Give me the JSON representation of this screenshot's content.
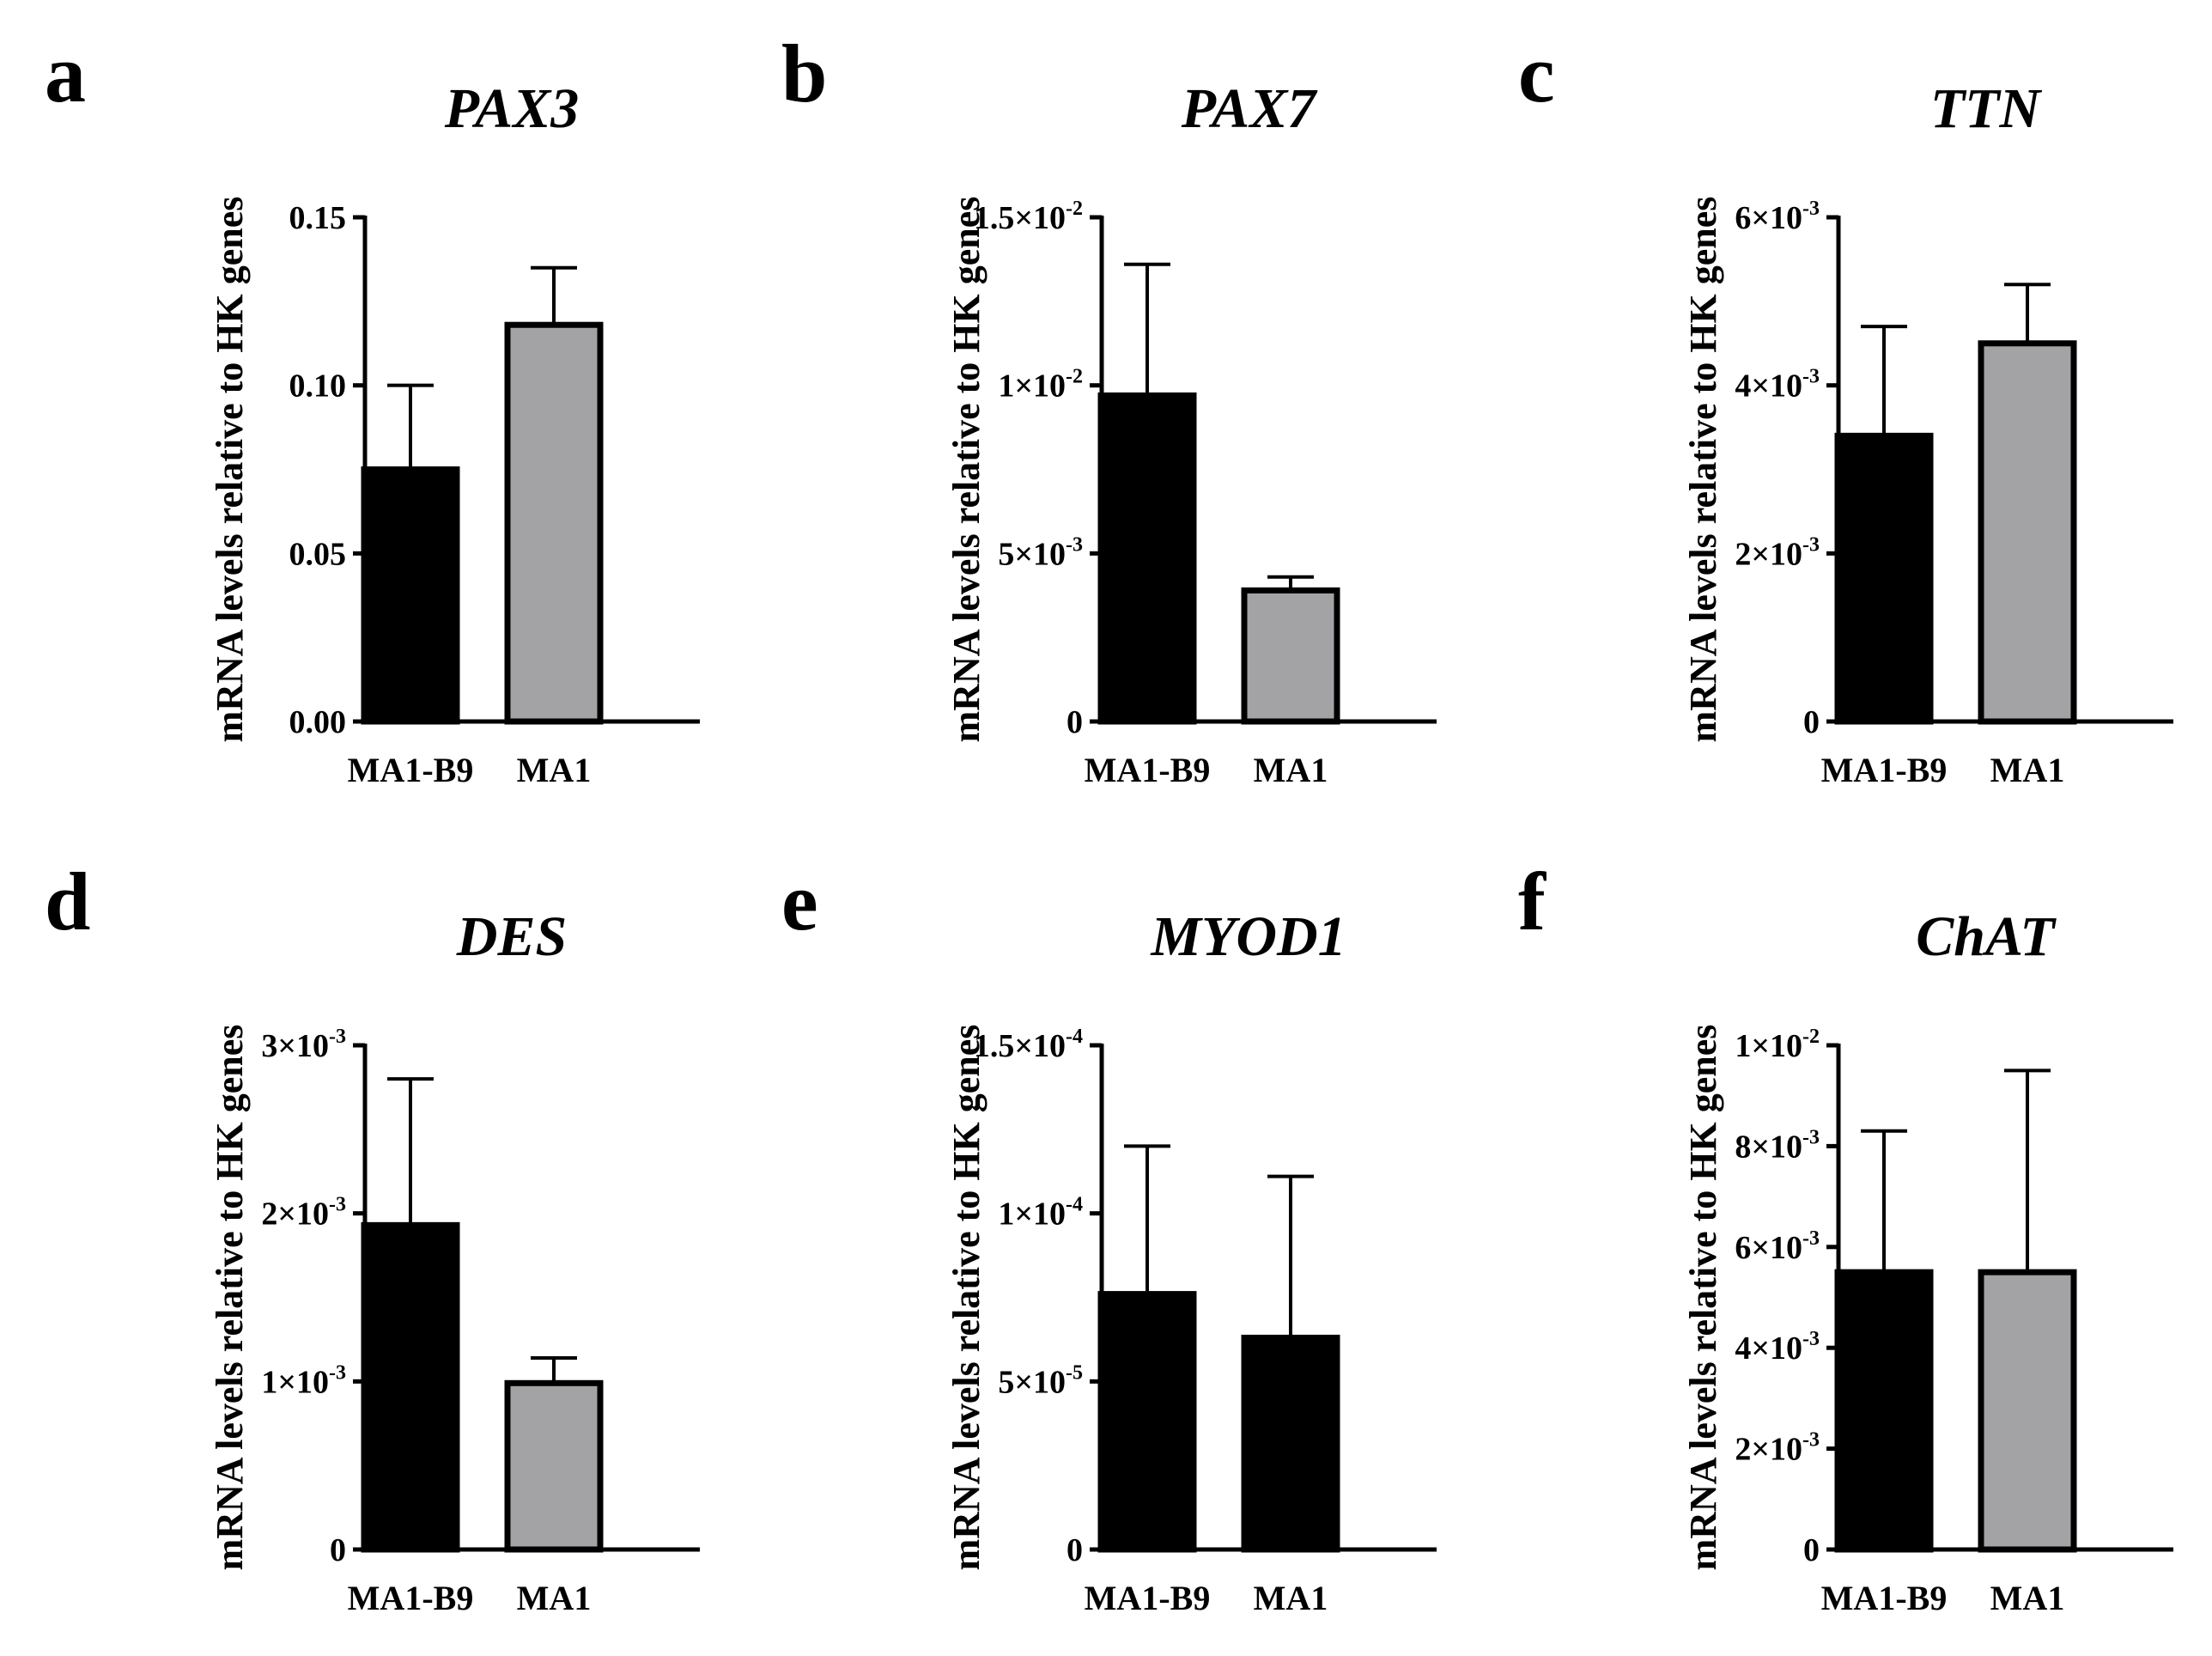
{
  "chart_data": [
    {
      "type": "bar",
      "panel": "a",
      "title": "PAX3",
      "ylabel": "mRNA levels relative to HK genes",
      "categories": [
        "MA1-B9",
        "MA1"
      ],
      "values": [
        0.075,
        0.118
      ],
      "errors": [
        0.025,
        0.017
      ],
      "colors": [
        "#000000",
        "#a3a3a6"
      ],
      "ylim": [
        0,
        0.15
      ],
      "yticks": [
        0,
        0.05,
        0.1,
        0.15
      ],
      "ytick_labels": [
        {
          "base": "0.00",
          "exp": ""
        },
        {
          "base": "0.05",
          "exp": ""
        },
        {
          "base": "0.10",
          "exp": ""
        },
        {
          "base": "0.15",
          "exp": ""
        }
      ]
    },
    {
      "type": "bar",
      "panel": "b",
      "title": "PAX7",
      "ylabel": "mRNA levels relative to HK genes",
      "categories": [
        "MA1-B9",
        "MA1"
      ],
      "values": [
        0.0097,
        0.0039
      ],
      "errors": [
        0.0039,
        0.0004
      ],
      "colors": [
        "#000000",
        "#a3a3a6"
      ],
      "ylim": [
        0,
        0.015
      ],
      "yticks": [
        0,
        0.005,
        0.01,
        0.015
      ],
      "ytick_labels": [
        {
          "base": "0",
          "exp": ""
        },
        {
          "base": "5×10",
          "exp": "-3"
        },
        {
          "base": "1×10",
          "exp": "-2"
        },
        {
          "base": "1.5×10",
          "exp": "-2"
        }
      ]
    },
    {
      "type": "bar",
      "panel": "c",
      "title": "TTN",
      "ylabel": "mRNA levels relative to HK genes",
      "categories": [
        "MA1-B9",
        "MA1"
      ],
      "values": [
        0.0034,
        0.0045
      ],
      "errors": [
        0.0013,
        0.0007
      ],
      "colors": [
        "#000000",
        "#a3a3a6"
      ],
      "ylim": [
        0,
        0.006
      ],
      "yticks": [
        0,
        0.002,
        0.004,
        0.006
      ],
      "ytick_labels": [
        {
          "base": "0",
          "exp": ""
        },
        {
          "base": "2×10",
          "exp": "-3"
        },
        {
          "base": "4×10",
          "exp": "-3"
        },
        {
          "base": "6×10",
          "exp": "-3"
        }
      ]
    },
    {
      "type": "bar",
      "panel": "d",
      "title": "DES",
      "ylabel": "mRNA levels relative to HK genes",
      "categories": [
        "MA1-B9",
        "MA1"
      ],
      "values": [
        0.00193,
        0.00099
      ],
      "errors": [
        0.00087,
        0.00015
      ],
      "colors": [
        "#000000",
        "#a3a3a6"
      ],
      "ylim": [
        0,
        0.003
      ],
      "yticks": [
        0,
        0.001,
        0.002,
        0.003
      ],
      "ytick_labels": [
        {
          "base": "0",
          "exp": ""
        },
        {
          "base": "1×10",
          "exp": "-3"
        },
        {
          "base": "2×10",
          "exp": "-3"
        },
        {
          "base": "3×10",
          "exp": "-3"
        }
      ]
    },
    {
      "type": "bar",
      "panel": "e",
      "title": "MYOD1",
      "ylabel": "mRNA levels relative to HK genes",
      "categories": [
        "MA1-B9",
        "MA1"
      ],
      "values": [
        7.6e-05,
        6.3e-05
      ],
      "errors": [
        4.4e-05,
        4.8e-05
      ],
      "colors": [
        "#000000",
        "#000000"
      ],
      "ylim": [
        0,
        0.00015
      ],
      "yticks": [
        0,
        5e-05,
        0.0001,
        0.00015
      ],
      "ytick_labels": [
        {
          "base": "0",
          "exp": ""
        },
        {
          "base": "5×10",
          "exp": "-5"
        },
        {
          "base": "1×10",
          "exp": "-4"
        },
        {
          "base": "1.5×10",
          "exp": "-4"
        }
      ]
    },
    {
      "type": "bar",
      "panel": "f",
      "title": "ChAT",
      "ylabel": "mRNA levels relative to HK genes",
      "categories": [
        "MA1-B9",
        "MA1"
      ],
      "values": [
        0.0055,
        0.0055
      ],
      "errors": [
        0.0028,
        0.004
      ],
      "colors": [
        "#000000",
        "#a3a3a6"
      ],
      "ylim": [
        0,
        0.01
      ],
      "yticks": [
        0,
        0.002,
        0.004,
        0.006,
        0.008,
        0.01
      ],
      "ytick_labels": [
        {
          "base": "0",
          "exp": ""
        },
        {
          "base": "2×10",
          "exp": "-3"
        },
        {
          "base": "4×10",
          "exp": "-3"
        },
        {
          "base": "6×10",
          "exp": "-3"
        },
        {
          "base": "8×10",
          "exp": "-3"
        },
        {
          "base": "1×10",
          "exp": "-2"
        }
      ]
    }
  ]
}
